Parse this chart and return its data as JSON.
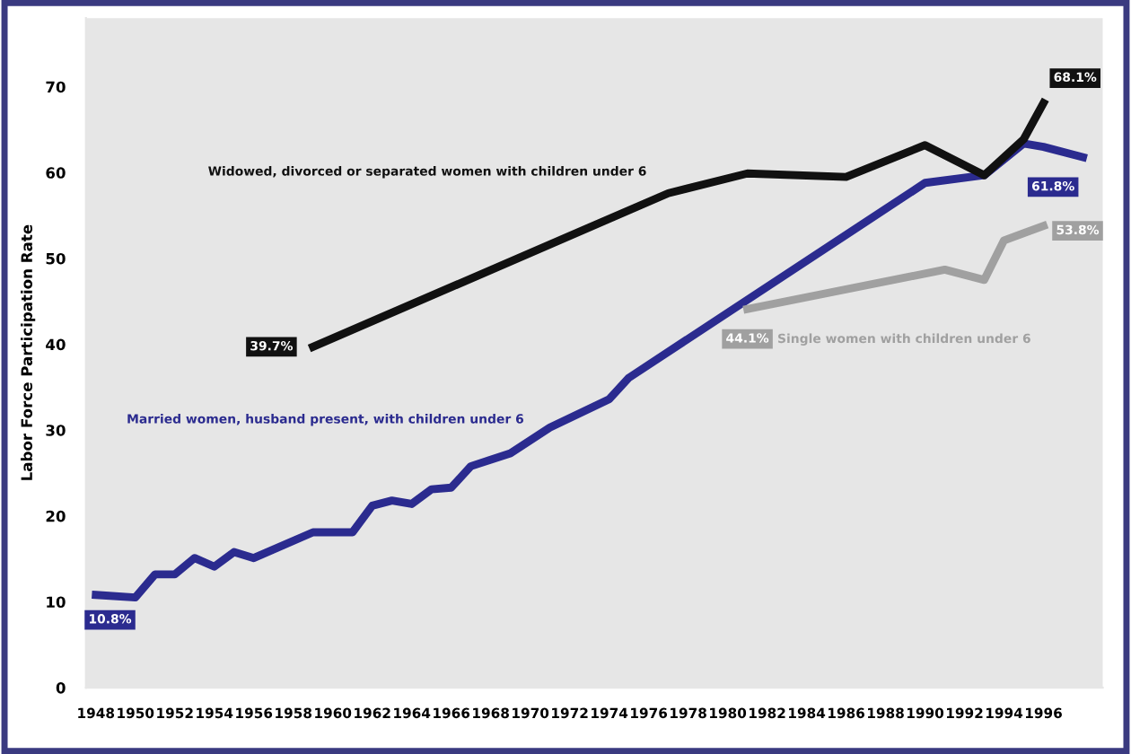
{
  "chart_data": {
    "type": "line",
    "ylabel": "Labor Force Participation Rate",
    "x": [
      1948,
      1950,
      1951,
      1952,
      1953,
      1954,
      1955,
      1956,
      1959,
      1961,
      1962,
      1963,
      1964,
      1965,
      1966,
      1967,
      1969,
      1971,
      1974,
      1975,
      1990,
      1993,
      1995,
      1996,
      1998
    ],
    "series": [
      {
        "name": "Married women, husband present, with children under 6",
        "color": "#2b2b8f",
        "values": [
          10.8,
          10.5,
          13.2,
          13.2,
          15.1,
          14.1,
          15.8,
          15.1,
          18.1,
          18.1,
          21.2,
          21.8,
          21.4,
          23.1,
          23.3,
          25.8,
          27.3,
          30.3,
          33.6,
          36.1,
          58.8,
          59.7,
          63.4,
          63.0,
          61.8
        ],
        "value_labels": [
          "10.8%",
          null,
          null,
          null,
          null,
          null,
          null,
          null,
          null,
          null,
          null,
          null,
          null,
          null,
          null,
          null,
          null,
          null,
          null,
          null,
          null,
          null,
          null,
          null,
          "61.8%"
        ]
      },
      {
        "name": "Widowed, divorced or separated women with children under 6",
        "color": "#111111",
        "x": [
          1959,
          1977,
          1981,
          1986,
          1990,
          1993,
          1995,
          1996
        ],
        "values": [
          39.7,
          57.6,
          59.9,
          59.5,
          63.2,
          59.7,
          63.9,
          68.1
        ],
        "value_labels": [
          "39.7%",
          null,
          null,
          null,
          null,
          null,
          null,
          "68.1%"
        ]
      },
      {
        "name": "Single women with children under 6",
        "color": "#a0a0a0",
        "x": [
          1981,
          1991,
          1993,
          1994,
          1996
        ],
        "values": [
          44.1,
          48.7,
          47.5,
          52.1,
          53.8
        ],
        "value_labels": [
          "44.1%",
          null,
          null,
          null,
          "53.8%"
        ]
      }
    ],
    "xlim": [
      1947.5,
      1999
    ],
    "xticks": [
      1948,
      1950,
      1952,
      1954,
      1956,
      1958,
      1960,
      1962,
      1964,
      1966,
      1968,
      1970,
      1972,
      1974,
      1976,
      1978,
      1980,
      1982,
      1984,
      1986,
      1988,
      1990,
      1992,
      1994,
      1996
    ],
    "ylim": [
      0,
      78
    ],
    "yticks": [
      0,
      10,
      20,
      30,
      40,
      50,
      60,
      70
    ],
    "grid": false
  }
}
